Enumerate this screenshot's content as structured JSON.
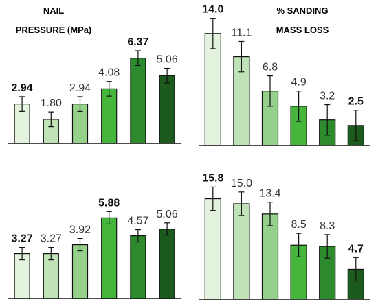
{
  "colors": [
    "#e3f3de",
    "#bfe3b6",
    "#95d18a",
    "#45b53c",
    "#2d8a2d",
    "#1d5a1d"
  ],
  "chart_data": [
    {
      "type": "bar",
      "title_lines": [
        "NAIL",
        "PRESSURE (MPa)"
      ],
      "values": [
        2.94,
        1.8,
        2.94,
        4.08,
        6.37,
        5.06
      ],
      "value_labels": [
        "2.94",
        "1.80",
        "2.94",
        "4.08",
        "6.37",
        "5.06"
      ],
      "bold_labels": [
        0,
        4
      ],
      "errors": [
        0.55,
        0.55,
        0.55,
        0.55,
        0.55,
        0.55
      ],
      "ylim": [
        0,
        8.2
      ]
    },
    {
      "type": "bar",
      "title_lines": [
        "%   SANDING",
        "MASS LOSS"
      ],
      "values": [
        14.0,
        11.1,
        6.8,
        4.9,
        3.2,
        2.5
      ],
      "value_labels": [
        "14.0",
        "11.1",
        "6.8",
        "4.9",
        "3.2",
        "2.5"
      ],
      "bold_labels": [
        0,
        5
      ],
      "errors": [
        1.9,
        1.9,
        1.9,
        1.9,
        1.9,
        1.9
      ],
      "ylim": [
        0,
        16.3
      ]
    },
    {
      "type": "bar",
      "title_lines": [],
      "values": [
        3.27,
        3.27,
        3.92,
        5.88,
        4.57,
        5.06
      ],
      "value_labels": [
        "3.27",
        "3.27",
        "3.92",
        "5.88",
        "4.57",
        "5.06"
      ],
      "bold_labels": [
        0,
        3
      ],
      "errors": [
        0.45,
        0.45,
        0.45,
        0.45,
        0.45,
        0.45
      ],
      "ylim": [
        0,
        8.0
      ]
    },
    {
      "type": "bar",
      "title_lines": [],
      "values": [
        15.8,
        15.0,
        13.4,
        8.5,
        8.3,
        4.7
      ],
      "value_labels": [
        "15.8",
        "15.0",
        "13.4",
        "8.5",
        "8.3",
        "4.7"
      ],
      "bold_labels": [
        0,
        5
      ],
      "errors": [
        1.85,
        1.85,
        1.85,
        1.85,
        1.85,
        1.85
      ],
      "ylim": [
        0,
        20.5
      ]
    }
  ]
}
